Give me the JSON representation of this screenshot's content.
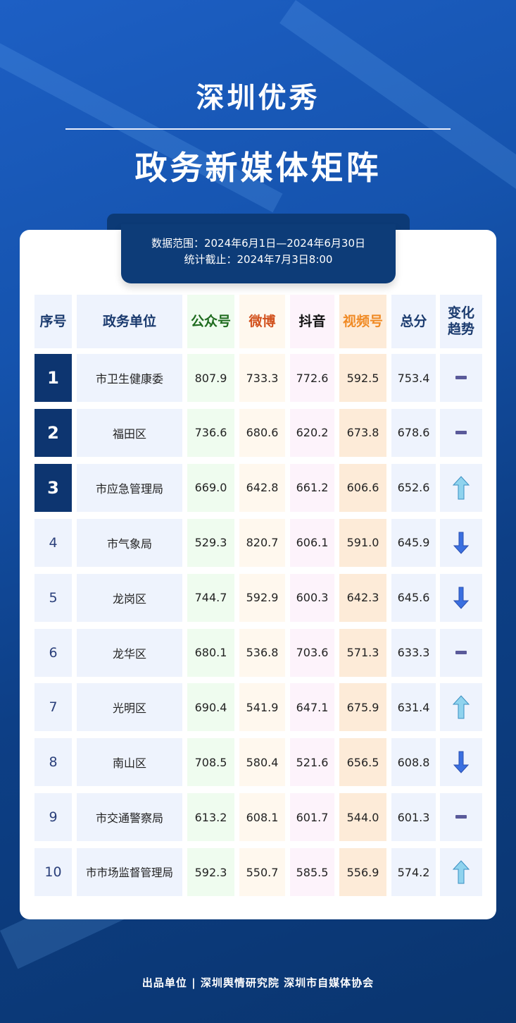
{
  "title_line1": "深圳优秀",
  "title_line2": "政务新媒体矩阵",
  "banner": {
    "range": "数据范围：2024年6月1日—2024年6月30日",
    "cutoff": "统计截止：2024年7月3日8:00"
  },
  "headers": [
    "序号",
    "政务单位",
    "公众号",
    "微博",
    "抖音",
    "视频号",
    "总分",
    "变化趋势"
  ],
  "header_colors": [
    "#1a3a6e",
    "#1a3a6e",
    "#1e6b1e",
    "#d2521e",
    "#111111",
    "#f08a24",
    "#1a3a6e",
    "#1a3a6e"
  ],
  "column_bg": [
    "#eef3fd",
    "#eef3fd",
    "#effcef",
    "#fff8ee",
    "#fdf3fb",
    "#fdebd8",
    "#eef3fd",
    "#eef3fd"
  ],
  "rows": [
    {
      "rank": "1",
      "unit": "市卫生健康委",
      "gzh": "807.9",
      "weibo": "733.3",
      "douyin": "772.6",
      "sph": "592.5",
      "total": "753.4",
      "trend": "flat"
    },
    {
      "rank": "2",
      "unit": "福田区",
      "gzh": "736.6",
      "weibo": "680.6",
      "douyin": "620.2",
      "sph": "673.8",
      "total": "678.6",
      "trend": "flat"
    },
    {
      "rank": "3",
      "unit": "市应急管理局",
      "gzh": "669.0",
      "weibo": "642.8",
      "douyin": "661.2",
      "sph": "606.6",
      "total": "652.6",
      "trend": "up"
    },
    {
      "rank": "4",
      "unit": "市气象局",
      "gzh": "529.3",
      "weibo": "820.7",
      "douyin": "606.1",
      "sph": "591.0",
      "total": "645.9",
      "trend": "down"
    },
    {
      "rank": "5",
      "unit": "龙岗区",
      "gzh": "744.7",
      "weibo": "592.9",
      "douyin": "600.3",
      "sph": "642.3",
      "total": "645.6",
      "trend": "down"
    },
    {
      "rank": "6",
      "unit": "龙华区",
      "gzh": "680.1",
      "weibo": "536.8",
      "douyin": "703.6",
      "sph": "571.3",
      "total": "633.3",
      "trend": "flat"
    },
    {
      "rank": "7",
      "unit": "光明区",
      "gzh": "690.4",
      "weibo": "541.9",
      "douyin": "647.1",
      "sph": "675.9",
      "total": "631.4",
      "trend": "up"
    },
    {
      "rank": "8",
      "unit": "南山区",
      "gzh": "708.5",
      "weibo": "580.4",
      "douyin": "521.6",
      "sph": "656.5",
      "total": "608.8",
      "trend": "down"
    },
    {
      "rank": "9",
      "unit": "市交通警察局",
      "gzh": "613.2",
      "weibo": "608.1",
      "douyin": "601.7",
      "sph": "544.0",
      "total": "601.3",
      "trend": "flat"
    },
    {
      "rank": "10",
      "unit": "市市场监督管理局",
      "gzh": "592.3",
      "weibo": "550.7",
      "douyin": "585.5",
      "sph": "556.9",
      "total": "574.2",
      "trend": "up"
    }
  ],
  "top_rank_color": "#0d3570",
  "footer": "出品单位 | 深圳舆情研究院 深圳市自媒体协会"
}
